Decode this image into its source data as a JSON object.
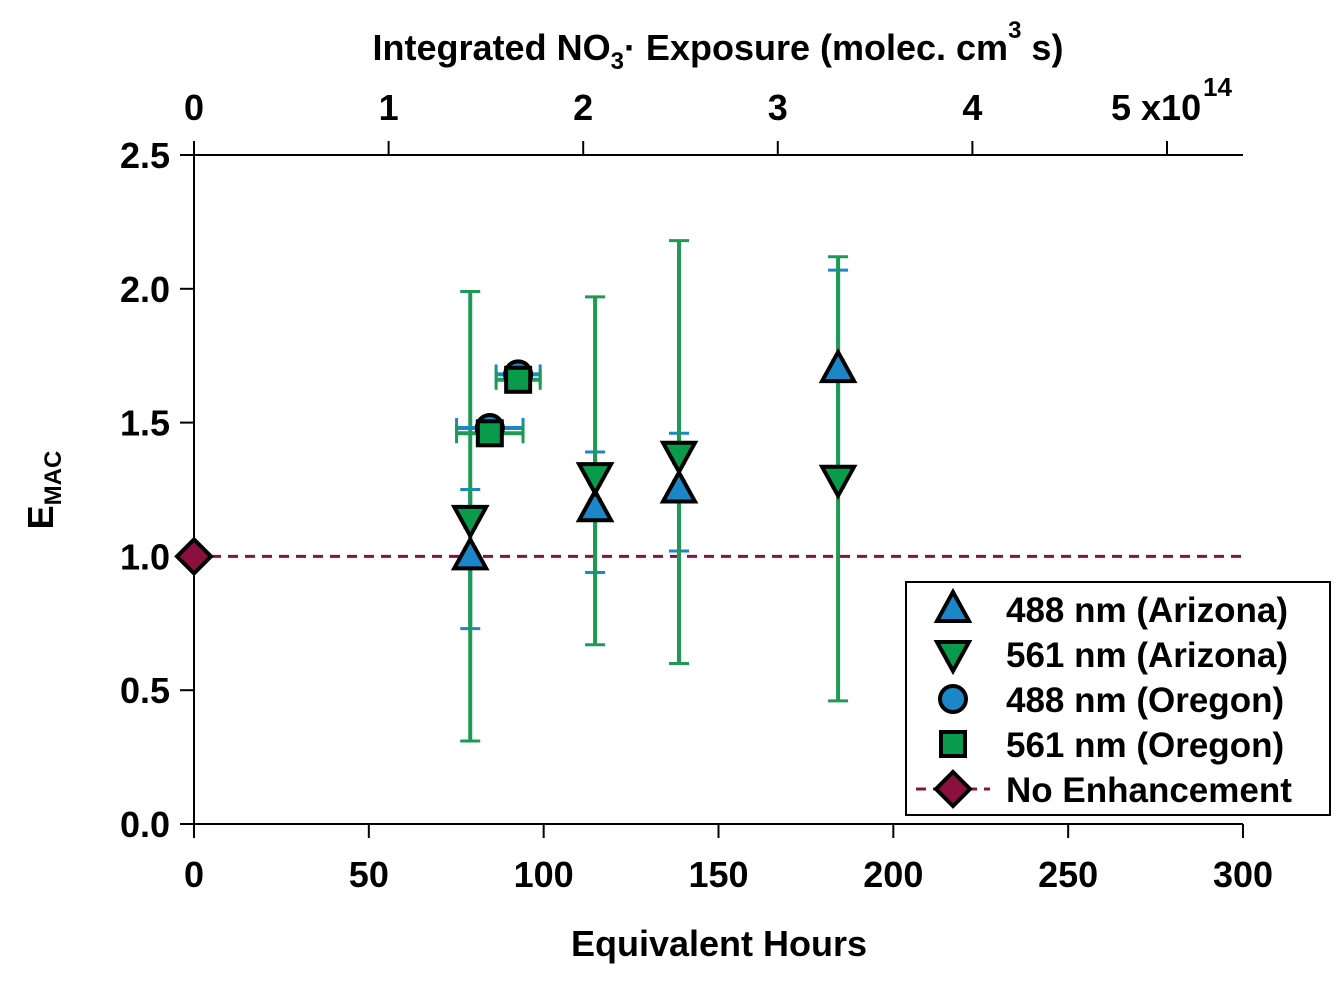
{
  "chart_data": {
    "type": "scatter",
    "title": "",
    "xlabel": "Equivalent Hours",
    "ylabel_main": "E",
    "ylabel_sub": "MAC",
    "top_xlabel_parts": [
      "Integrated NO",
      "3",
      "· Exposure (molec. cm",
      "3",
      " s)"
    ],
    "xlim": [
      0,
      300
    ],
    "ylim": [
      0,
      2.5
    ],
    "top_xlim": [
      0,
      5.4
    ],
    "x_ticks": [
      "0",
      "50",
      "100",
      "150",
      "200",
      "250",
      "300"
    ],
    "x_tick_values": [
      0,
      50,
      100,
      150,
      200,
      250,
      300
    ],
    "y_ticks": [
      "0.0",
      "0.5",
      "1.0",
      "1.5",
      "2.0",
      "2.5"
    ],
    "y_tick_values": [
      0,
      0.5,
      1.0,
      1.5,
      2.0,
      2.5
    ],
    "top_ticks": [
      "0",
      "1",
      "2",
      "3",
      "4",
      "5 x10"
    ],
    "top_tick_values": [
      0,
      1,
      2,
      3,
      4,
      5
    ],
    "top_exponent": "14",
    "grid": false,
    "legend_position": "bottom-right",
    "colors": {
      "blue": "#1b87c9",
      "green": "#0a9a4c",
      "maroon": "#8b1040",
      "errgreen": "#1e9a55"
    },
    "series": [
      {
        "name": "488 nm (Arizona)",
        "marker": "triangle-up",
        "color": "#1b87c9",
        "points": [
          {
            "x": 79,
            "y": 1.0,
            "yerr": [
              0.73,
              1.25
            ],
            "xerr": 1.5
          },
          {
            "x": 114.7,
            "y": 1.18,
            "yerr": [
              0.94,
              1.39
            ],
            "xerr": 1.5
          },
          {
            "x": 138.7,
            "y": 1.25,
            "yerr": [
              1.02,
              1.46
            ],
            "xerr": 1.5
          },
          {
            "x": 184.2,
            "y": 1.7,
            "yerr": [
              1.33,
              2.07
            ],
            "xerr": 1.5
          }
        ]
      },
      {
        "name": "561 nm (Arizona)",
        "marker": "triangle-down",
        "color": "#0a9a4c",
        "points": [
          {
            "x": 79,
            "y": 1.14,
            "yerr": [
              0.31,
              1.99
            ],
            "xerr": 1.5
          },
          {
            "x": 114.7,
            "y": 1.3,
            "yerr": [
              0.67,
              1.97
            ],
            "xerr": 1.5
          },
          {
            "x": 138.7,
            "y": 1.38,
            "yerr": [
              0.6,
              2.18
            ],
            "xerr": 1.5
          },
          {
            "x": 184.2,
            "y": 1.29,
            "yerr": [
              0.46,
              2.12
            ],
            "xerr": 1.5
          }
        ]
      },
      {
        "name": "488 nm (Oregon)",
        "marker": "circle",
        "color": "#1b87c9",
        "points": [
          {
            "x": 84.6,
            "y": 1.48,
            "xerr": 9.5
          },
          {
            "x": 92.7,
            "y": 1.68,
            "xerr": 6.3
          }
        ]
      },
      {
        "name": "561 nm (Oregon)",
        "marker": "square",
        "color": "#0a9a4c",
        "points": [
          {
            "x": 84.6,
            "y": 1.46,
            "xerr": 9.5
          },
          {
            "x": 92.7,
            "y": 1.66,
            "xerr": 6.3
          }
        ]
      },
      {
        "name": "No Enhancement",
        "marker": "diamond",
        "color": "#8b1040",
        "line": "dashed",
        "points": [
          {
            "x": 0,
            "y": 1.0
          }
        ],
        "line_y": 1.0
      }
    ]
  }
}
